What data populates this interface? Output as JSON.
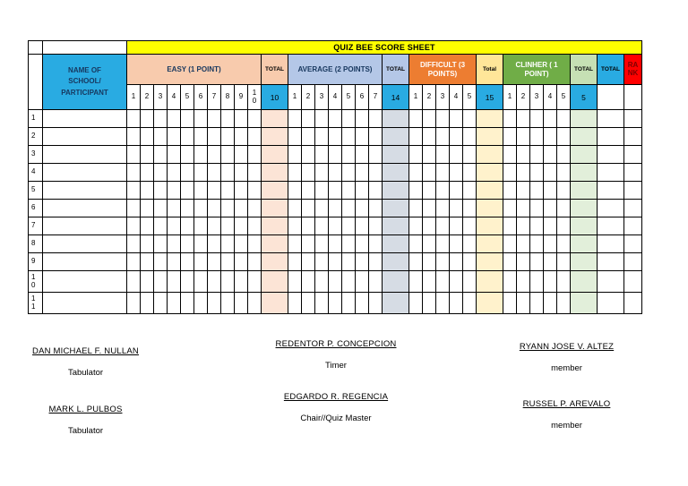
{
  "title": {
    "text": "QUIZ BEE SCORE SHEET",
    "bg": "#FFFF00"
  },
  "name_header": {
    "lines": [
      "NAME OF",
      "SCHOOL/",
      "PARTICIPANT"
    ],
    "bg": "#29ABE2"
  },
  "sections": [
    {
      "id": "easy",
      "label": "EASY (1 POINT)",
      "points_cols": [
        "1",
        "2",
        "3",
        "4",
        "5",
        "6",
        "7",
        "8",
        "9",
        "10"
      ],
      "total_label": "TOTAL",
      "total_value": "10",
      "header_bg": "#F8CBAD",
      "header_text": "#17375E",
      "total_label_bg": "#F8CBAD",
      "total_value_bg": "#29ABE2",
      "data_total_bg": "#FCE4D6"
    },
    {
      "id": "average",
      "label": "AVERAGE (2 POINTS)",
      "points_cols": [
        "1",
        "2",
        "3",
        "4",
        "5",
        "6",
        "7"
      ],
      "total_label": "TOTAL",
      "total_value": "14",
      "header_bg": "#B4C7E7",
      "header_text": "#17375E",
      "total_label_bg": "#B4C7E7",
      "total_value_bg": "#29ABE2",
      "data_total_bg": "#D6DCE4"
    },
    {
      "id": "difficult",
      "label": "DIFFICULT (3 POINTS)",
      "points_cols": [
        "1",
        "2",
        "3",
        "4",
        "5"
      ],
      "total_label": "Total",
      "total_value": "15",
      "header_bg": "#ED7D31",
      "header_text": "#FFFFFF",
      "total_label_bg": "#FFE699",
      "total_value_bg": "#29ABE2",
      "data_total_bg": "#FFF2CC"
    },
    {
      "id": "clinher",
      "label": "CLINHER ( 1 POINT)",
      "points_cols": [
        "1",
        "2",
        "3",
        "4",
        "5"
      ],
      "total_label": "TOTAL",
      "total_value": "5",
      "header_bg": "#70AD47",
      "header_text": "#FFFFFF",
      "total_label_bg": "#C6E0B4",
      "total_value_bg": "#29ABE2",
      "data_total_bg": "#E2EFDA"
    }
  ],
  "grand_total": {
    "label": "TOTAL",
    "bg": "#29ABE2"
  },
  "rank": {
    "label": "RANK",
    "bg": "#FF0000",
    "text": "#7F0000"
  },
  "row_numbers": [
    "1",
    "2",
    "3",
    "4",
    "5",
    "6",
    "7",
    "8",
    "9",
    "10",
    "11"
  ],
  "signatures": {
    "blocks": [
      {
        "name": "DAN MICHAEL F. NULLAN",
        "role": "Tabulator"
      },
      {
        "name": "REDENTOR P. CONCEPCION",
        "role": "Timer"
      },
      {
        "name": "RYANN JOSE V. ALTEZ",
        "role": "member"
      },
      {
        "name": "MARK L. PULBOS",
        "role": "Tabulator"
      },
      {
        "name": "EDGARDO R. REGENCIA",
        "role": "Chair//Quiz Master"
      },
      {
        "name": "RUSSEL P. AREVALO",
        "role": "member"
      }
    ]
  }
}
